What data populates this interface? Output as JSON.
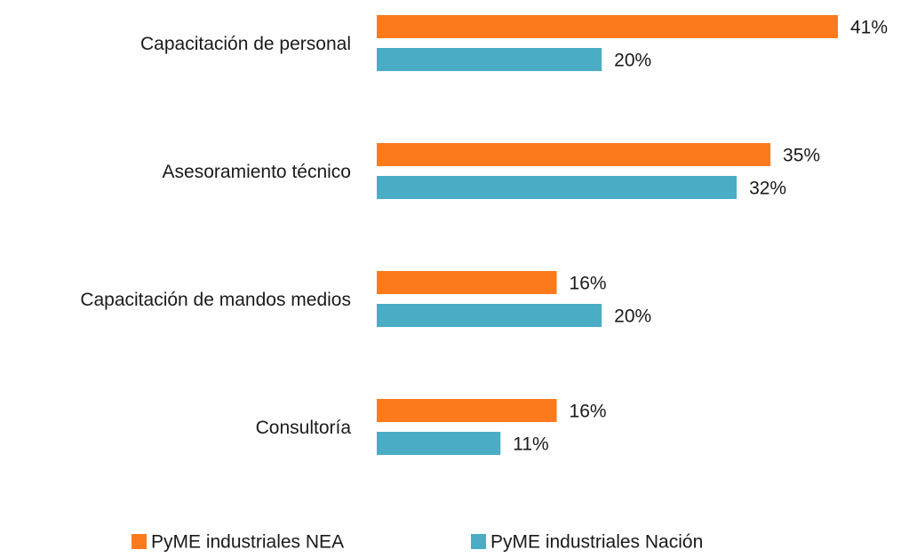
{
  "chart_data": {
    "type": "hbar",
    "categories": [
      "Capacitación de personal",
      "Asesoramiento técnico",
      "Capacitación de mandos medios",
      "Consultoría"
    ],
    "series": [
      {
        "name": "PyME industriales NEA",
        "color": "#fd7a1c",
        "values": [
          41,
          35,
          16,
          16
        ],
        "value_labels": [
          "41%",
          "35%",
          "16%",
          "16%"
        ]
      },
      {
        "name": "PyME industriales Nación",
        "color": "#4bacc6",
        "values": [
          20,
          32,
          20,
          11
        ],
        "value_labels": [
          "20%",
          "32%",
          "20%",
          "11%"
        ]
      }
    ],
    "legend": "bottom"
  }
}
